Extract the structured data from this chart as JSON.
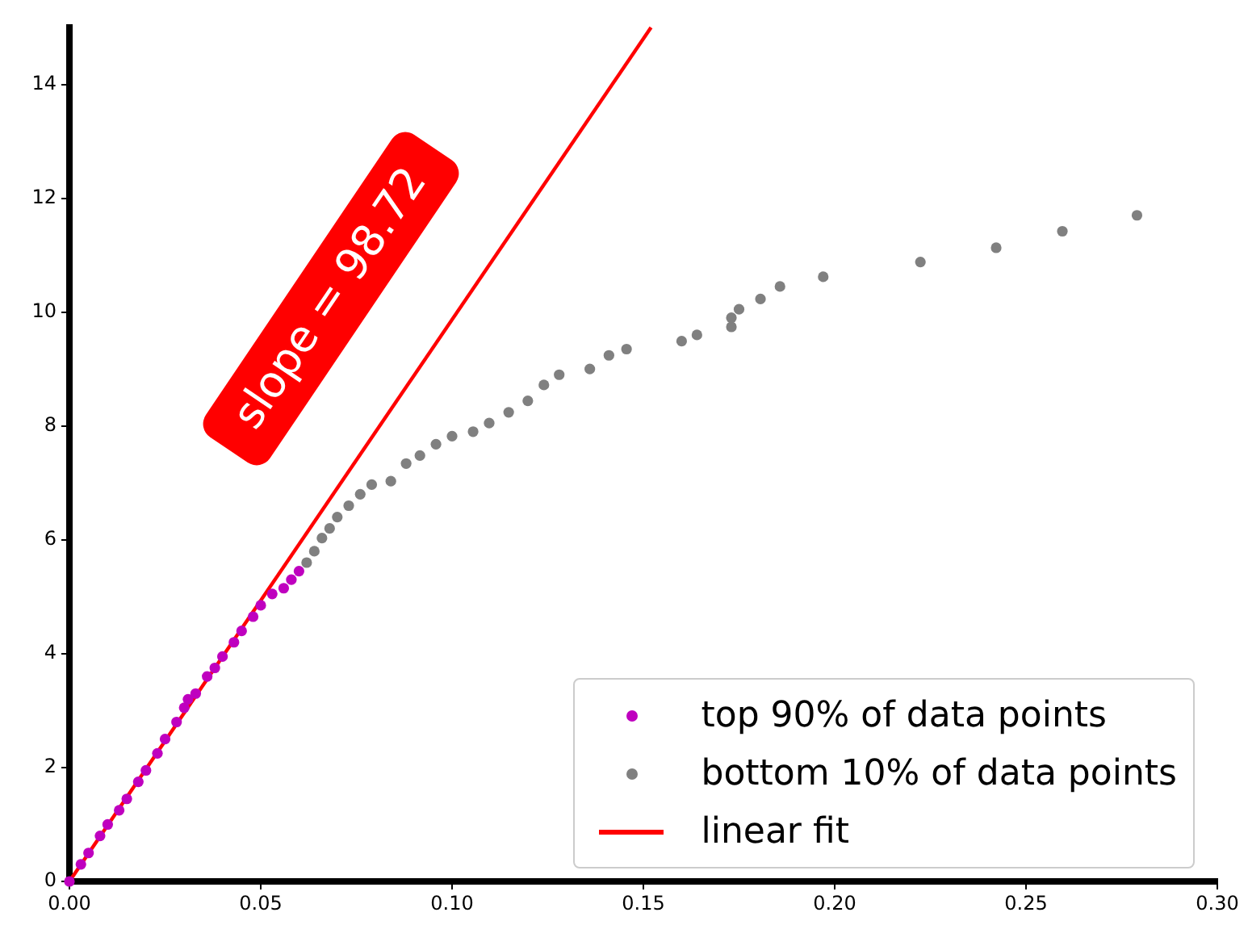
{
  "chart_data": {
    "type": "scatter",
    "xlim": [
      0,
      0.3
    ],
    "ylim": [
      0,
      15
    ],
    "xticks": [
      {
        "value": 0,
        "label": "0.00"
      },
      {
        "value": 0.05,
        "label": "0.05"
      },
      {
        "value": 0.1,
        "label": "0.10"
      },
      {
        "value": 0.15,
        "label": "0.15"
      },
      {
        "value": 0.2,
        "label": "0.20"
      },
      {
        "value": 0.25,
        "label": "0.25"
      },
      {
        "value": 0.3,
        "label": "0.30"
      }
    ],
    "yticks": [
      0,
      2,
      4,
      6,
      8,
      10,
      12,
      14
    ],
    "grid": false,
    "legend": "bottom right",
    "marker": "circle",
    "annotations": [
      "slope = 98.72"
    ],
    "series": [
      {
        "name": "top 90% of data points",
        "color": "#bf00bf",
        "x": [
          0,
          0.003,
          0.005,
          0.008,
          0.01,
          0.013,
          0.015,
          0.018,
          0.02,
          0.023,
          0.025,
          0.028,
          0.03,
          0.031,
          0.033,
          0.036,
          0.038,
          0.04,
          0.043,
          0.045,
          0.048,
          0.05,
          0.053,
          0.056,
          0.058,
          0.06
        ],
        "values": [
          0,
          0.3,
          0.5,
          0.8,
          1,
          1.25,
          1.45,
          1.75,
          1.95,
          2.25,
          2.5,
          2.8,
          3.05,
          3.2,
          3.3,
          3.6,
          3.75,
          3.95,
          4.2,
          4.4,
          4.65,
          4.85,
          5.05,
          5.15,
          5.3,
          5.45
        ]
      },
      {
        "name": "bottom 10% of data points",
        "color": "#808080",
        "x": [
          0.062,
          0.064,
          0.066,
          0.068,
          0.07,
          0.073,
          0.076,
          0.079,
          0.084,
          0.088,
          0.0916,
          0.0958,
          0.1,
          0.1055,
          0.1097,
          0.1148,
          0.1198,
          0.124,
          0.128,
          0.136,
          0.141,
          0.1456,
          0.16,
          0.164,
          0.173,
          0.173,
          0.175,
          0.1806,
          0.1857,
          0.197,
          0.2224,
          0.2422,
          0.2595,
          0.279
        ],
        "values": [
          5.6,
          5.8,
          6.03,
          6.2,
          6.4,
          6.6,
          6.8,
          6.97,
          7.03,
          7.34,
          7.48,
          7.68,
          7.82,
          7.9,
          8.05,
          8.24,
          8.44,
          8.72,
          8.9,
          9,
          9.24,
          9.35,
          9.49,
          9.6,
          9.74,
          9.9,
          10.05,
          10.23,
          10.45,
          10.62,
          10.88,
          11.13,
          11.42,
          11.7
        ]
      },
      {
        "name": "linear fit",
        "type": "line",
        "color": "#ff0000",
        "marker": "none",
        "x": [
          0,
          0.152
        ],
        "values": [
          0,
          15
        ]
      }
    ]
  }
}
